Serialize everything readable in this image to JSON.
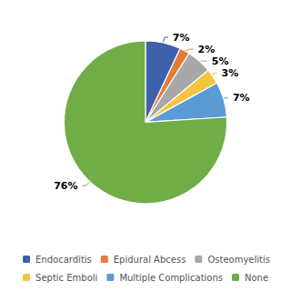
{
  "chart_data": {
    "type": "pie",
    "categories": [
      "Endocarditis",
      "Epidural Abcess",
      "Osteomyelitis",
      "Septic Emboli",
      "Multiple Complications",
      "None"
    ],
    "values": [
      7,
      2,
      5,
      3,
      7,
      76
    ],
    "value_labels": [
      "7%",
      "2%",
      "5%",
      "3%",
      "7%",
      "76%"
    ],
    "colors": [
      "#3f60aa",
      "#e07b39",
      "#a8a8a8",
      "#f5c342",
      "#5b9bd5",
      "#70ad47"
    ],
    "data_labels": true,
    "legend": "bottom"
  }
}
